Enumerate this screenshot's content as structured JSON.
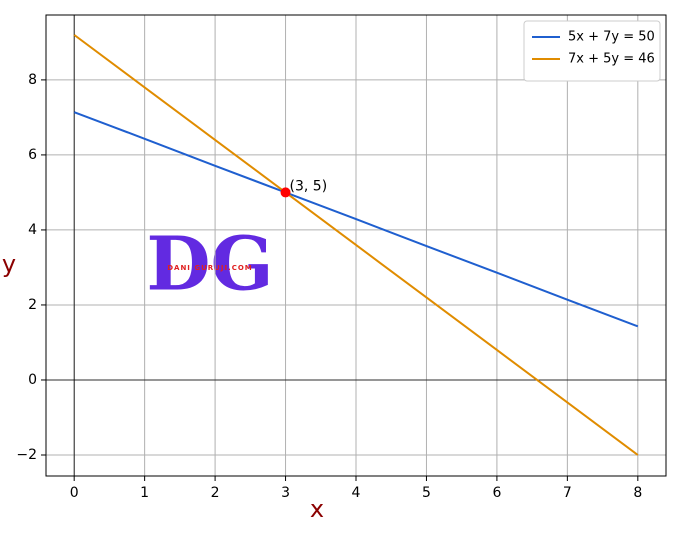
{
  "chart_data": {
    "type": "line",
    "x_label": "x",
    "y_label": "y",
    "x": [
      0,
      1,
      2,
      3,
      4,
      5,
      6,
      7,
      8
    ],
    "series": [
      {
        "name": "5x + 7y = 50",
        "color": "#1f5fcf",
        "values": [
          7.14,
          6.43,
          5.71,
          5,
          4.29,
          3.57,
          2.86,
          2.14,
          1.43
        ]
      },
      {
        "name": "7x + 5y = 46",
        "color": "#e08c00",
        "values": [
          9.2,
          7.8,
          6.4,
          5,
          3.6,
          2.2,
          0.8,
          -0.6,
          -2
        ]
      }
    ],
    "points": [
      {
        "x": 3,
        "y": 5,
        "label": "(3, 5)",
        "color": "#ff0000"
      }
    ],
    "xlim": [
      -0.4,
      8.4
    ],
    "ylim": [
      -2.56,
      9.73
    ],
    "xticks": [
      0,
      1,
      2,
      3,
      4,
      5,
      6,
      7,
      8
    ],
    "yticks": [
      {
        "value": -2,
        "label": "−2"
      },
      0,
      2,
      4,
      6,
      8
    ],
    "grid": true,
    "legend": "upper right",
    "watermark": {
      "logo": "DG",
      "text": "DANI GURUJI.COM"
    }
  }
}
